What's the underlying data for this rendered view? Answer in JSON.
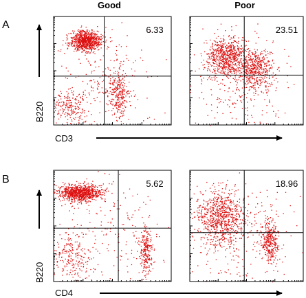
{
  "figure": {
    "columns": [
      "Good",
      "Poor"
    ],
    "rows": [
      {
        "label": "A",
        "x_marker": "CD3",
        "y_marker": "B220"
      },
      {
        "label": "B",
        "x_marker": "CD4",
        "y_marker": "B220"
      }
    ]
  },
  "colors": {
    "dots": "#dd1111",
    "frame": "#000000",
    "gate": "#000000"
  },
  "chart_data": [
    {
      "type": "scatter",
      "row": "A",
      "column": "Good",
      "xlabel": "CD3",
      "ylabel": "B220",
      "log_scale": true,
      "xlim": [
        0,
        1
      ],
      "ylim": [
        0,
        1
      ],
      "gate": {
        "x": 0.43,
        "y": 0.45
      },
      "quadrant_value": "6.33",
      "quadrant": "top-right",
      "populations": [
        {
          "cx": 0.27,
          "cy": 0.78,
          "sx": 0.065,
          "sy": 0.045,
          "n": 850
        },
        {
          "cx": 0.55,
          "cy": 0.28,
          "sx": 0.04,
          "sy": 0.11,
          "n": 260
        },
        {
          "cx": 0.13,
          "cy": 0.16,
          "sx": 0.09,
          "sy": 0.09,
          "n": 220
        },
        {
          "cx": 0.42,
          "cy": 0.4,
          "sx": 0.2,
          "sy": 0.22,
          "n": 200
        }
      ]
    },
    {
      "type": "scatter",
      "row": "A",
      "column": "Poor",
      "xlabel": "",
      "ylabel": "",
      "log_scale": true,
      "xlim": [
        0,
        1
      ],
      "ylim": [
        0,
        1
      ],
      "gate": {
        "x": 0.48,
        "y": 0.46
      },
      "quadrant_value": "23.51",
      "quadrant": "top-right",
      "populations": [
        {
          "cx": 0.32,
          "cy": 0.63,
          "sx": 0.09,
          "sy": 0.09,
          "n": 700
        },
        {
          "cx": 0.58,
          "cy": 0.5,
          "sx": 0.07,
          "sy": 0.09,
          "n": 420
        },
        {
          "cx": 0.45,
          "cy": 0.4,
          "sx": 0.22,
          "sy": 0.24,
          "n": 300
        }
      ]
    },
    {
      "type": "scatter",
      "row": "B",
      "column": "Good",
      "xlabel": "CD4",
      "ylabel": "B220",
      "log_scale": true,
      "xlim": [
        0,
        1
      ],
      "ylim": [
        0,
        1
      ],
      "gate": {
        "x": 0.55,
        "y": 0.48
      },
      "quadrant_value": "5.62",
      "quadrant": "top-right",
      "populations": [
        {
          "cx": 0.22,
          "cy": 0.8,
          "sx": 0.09,
          "sy": 0.035,
          "n": 900
        },
        {
          "cx": 0.78,
          "cy": 0.26,
          "sx": 0.025,
          "sy": 0.12,
          "n": 240
        },
        {
          "cx": 0.15,
          "cy": 0.22,
          "sx": 0.09,
          "sy": 0.12,
          "n": 220
        },
        {
          "cx": 0.45,
          "cy": 0.45,
          "sx": 0.25,
          "sy": 0.25,
          "n": 200
        }
      ]
    },
    {
      "type": "scatter",
      "row": "B",
      "column": "Poor",
      "xlabel": "",
      "ylabel": "",
      "log_scale": true,
      "xlim": [
        0,
        1
      ],
      "ylim": [
        0,
        1
      ],
      "gate": {
        "x": 0.48,
        "y": 0.44
      },
      "quadrant_value": "18.96",
      "quadrant": "top-right",
      "populations": [
        {
          "cx": 0.28,
          "cy": 0.58,
          "sx": 0.1,
          "sy": 0.12,
          "n": 750
        },
        {
          "cx": 0.7,
          "cy": 0.36,
          "sx": 0.04,
          "sy": 0.1,
          "n": 320
        },
        {
          "cx": 0.4,
          "cy": 0.4,
          "sx": 0.25,
          "sy": 0.25,
          "n": 280
        }
      ]
    }
  ]
}
